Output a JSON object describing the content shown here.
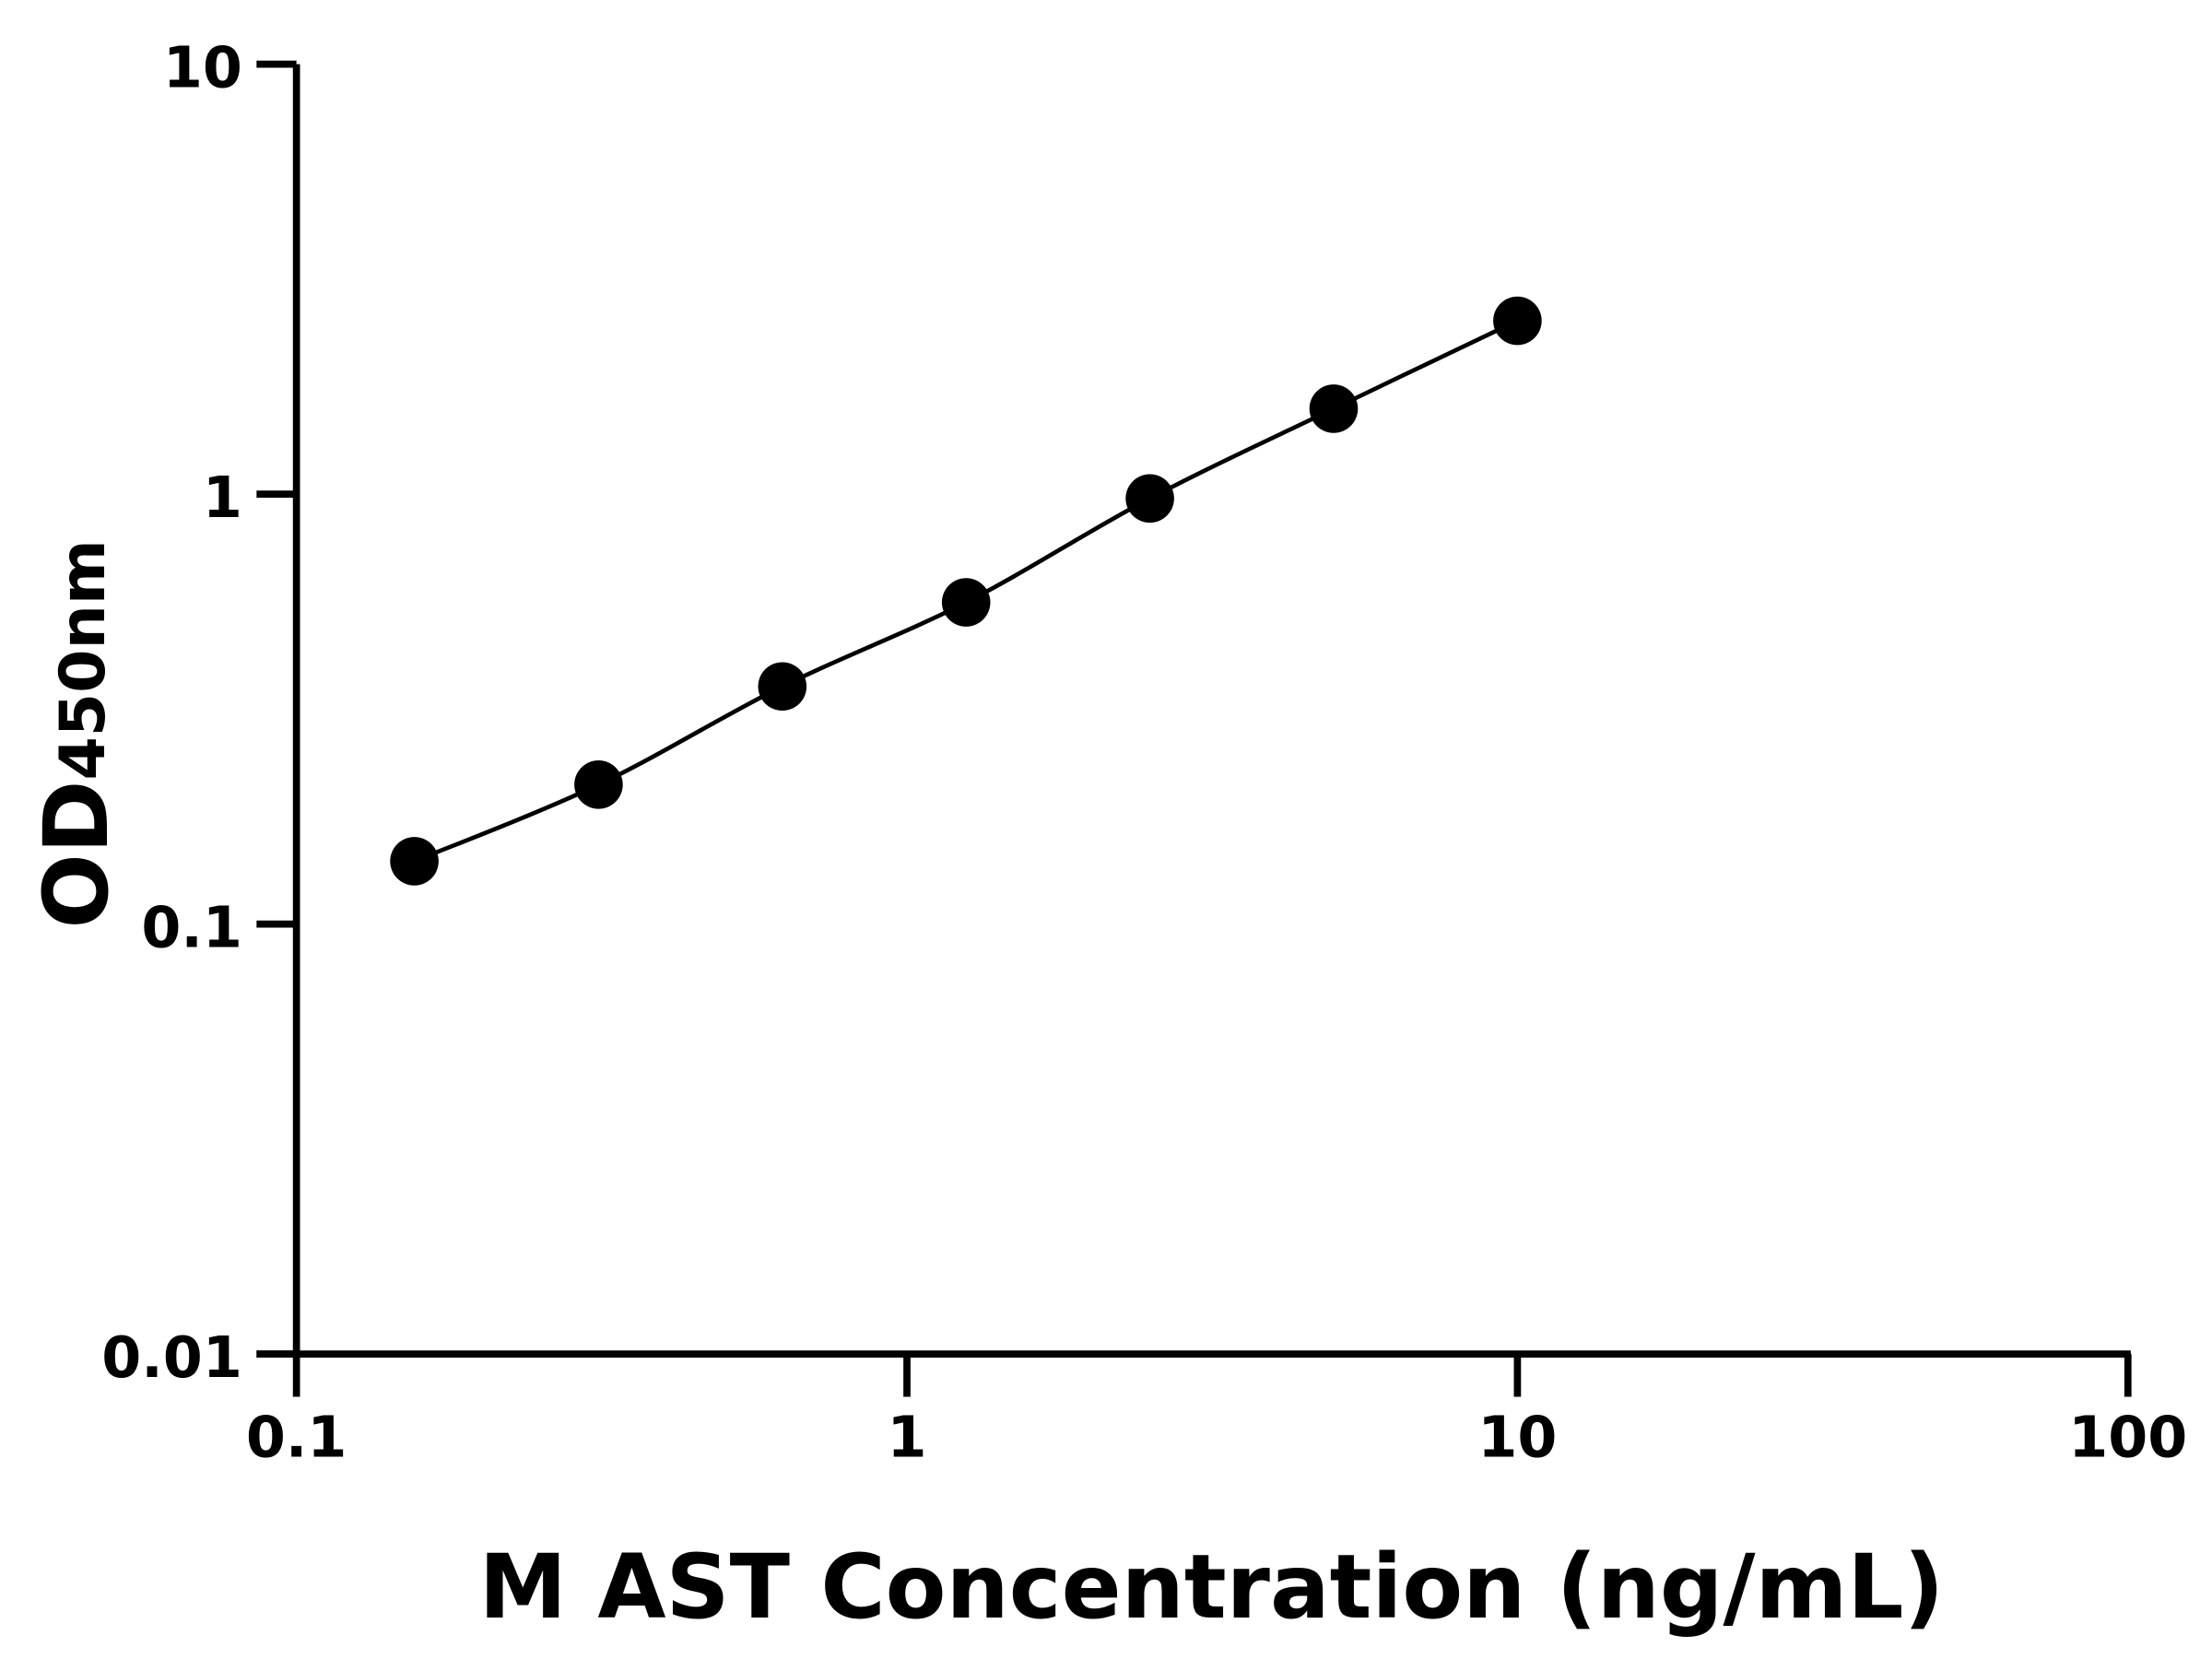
{
  "chart_data": {
    "type": "line",
    "title": "",
    "xlabel": "M AST Concentration (ng/mL)",
    "ylabel": {
      "main": "OD",
      "subscript": "450nm"
    },
    "xscale": "log",
    "yscale": "log",
    "xlim": [
      0.1,
      100
    ],
    "ylim": [
      0.01,
      10
    ],
    "xticks": [
      "0.1",
      "1",
      "10",
      "100"
    ],
    "yticks": [
      "0.01",
      "0.1",
      "1",
      "10"
    ],
    "grid": false,
    "legend": "none",
    "series": [
      {
        "x": [
          0.156,
          0.3125,
          0.625,
          1.25,
          2.5,
          5,
          10
        ],
        "y": [
          0.14,
          0.211,
          0.357,
          0.56,
          0.977,
          1.58,
          2.53
        ],
        "marker": "circle",
        "color": "#000000"
      }
    ]
  }
}
